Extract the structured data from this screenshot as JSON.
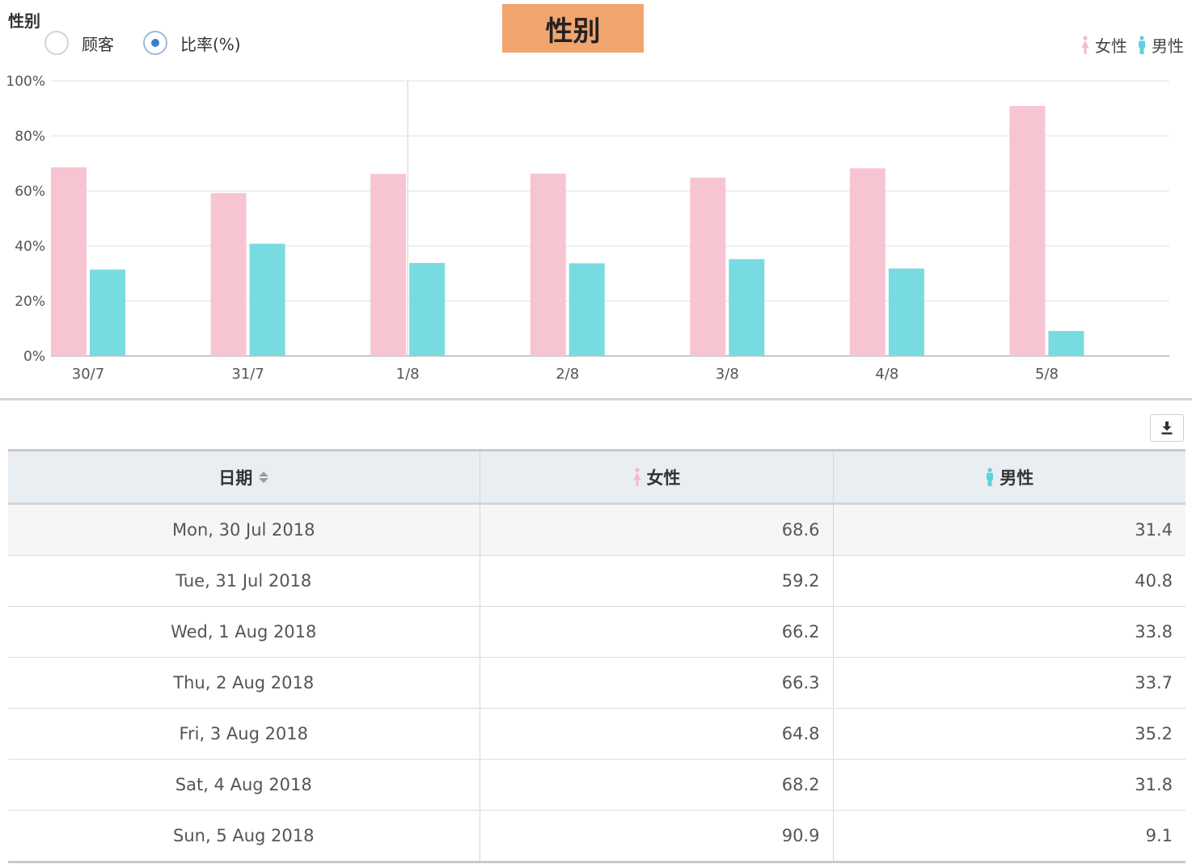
{
  "header": {
    "section_label": "性别",
    "title": "性别",
    "radio_options": [
      {
        "label": "顾客",
        "selected": false
      },
      {
        "label": "比率(%)",
        "selected": true
      }
    ]
  },
  "legend": [
    {
      "label": "女性",
      "color": "#f7c5d1"
    },
    {
      "label": "男性",
      "color": "#78dbe2"
    }
  ],
  "chart_data": {
    "type": "bar",
    "categories": [
      "30/7",
      "31/7",
      "1/8",
      "2/8",
      "3/8",
      "4/8",
      "5/8"
    ],
    "series": [
      {
        "name": "女性",
        "color": "#f7c5d1",
        "values": [
          68.6,
          59.2,
          66.2,
          66.3,
          64.8,
          68.2,
          90.9
        ]
      },
      {
        "name": "男性",
        "color": "#78dbe2",
        "values": [
          31.4,
          40.8,
          33.8,
          33.7,
          35.2,
          31.8,
          9.1
        ]
      }
    ],
    "y_ticks": [
      "0%",
      "20%",
      "40%",
      "60%",
      "80%",
      "100%"
    ],
    "ylim": [
      0,
      100
    ],
    "grid": true,
    "legend_position": "top-right"
  },
  "table": {
    "columns": [
      "日期",
      "女性",
      "男性"
    ],
    "rows": [
      [
        "Mon, 30 Jul 2018",
        "68.6",
        "31.4"
      ],
      [
        "Tue, 31 Jul 2018",
        "59.2",
        "40.8"
      ],
      [
        "Wed, 1 Aug 2018",
        "66.2",
        "33.8"
      ],
      [
        "Thu, 2 Aug 2018",
        "66.3",
        "33.7"
      ],
      [
        "Fri, 3 Aug 2018",
        "64.8",
        "35.2"
      ],
      [
        "Sat, 4 Aug 2018",
        "68.2",
        "31.8"
      ],
      [
        "Sun, 5 Aug 2018",
        "90.9",
        "9.1"
      ]
    ]
  }
}
